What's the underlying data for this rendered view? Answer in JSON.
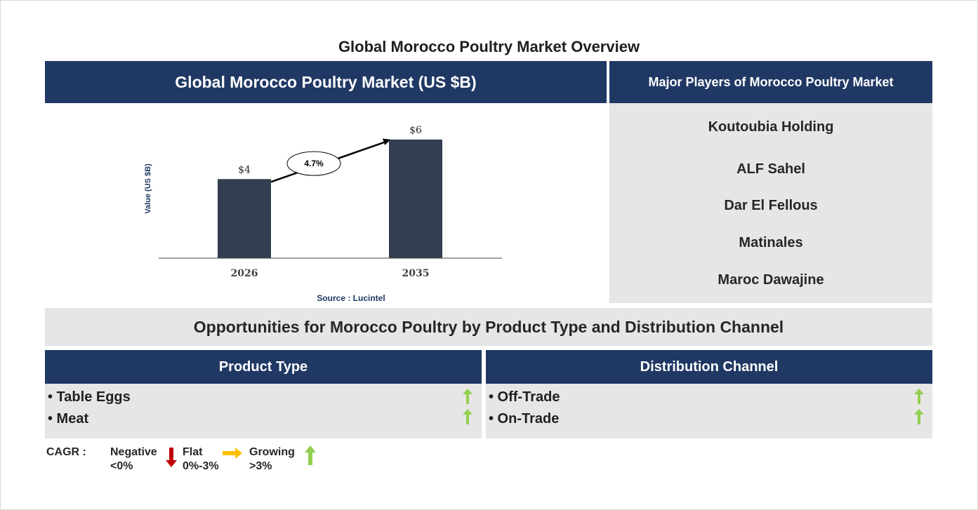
{
  "title": "Global Morocco Poultry Market Overview",
  "chart_panel": {
    "header": "Global Morocco Poultry Market (US $B)",
    "source": "Source : Lucintel"
  },
  "chart_data": {
    "type": "bar",
    "categories": [
      "2026",
      "2035"
    ],
    "values": [
      4,
      6
    ],
    "value_labels": [
      "$4",
      "$6"
    ],
    "ylabel": "Value (US $B)",
    "ylim": [
      0,
      6.6
    ],
    "cagr_label": "4.7%",
    "bar_color": "#333f50",
    "grid": false
  },
  "players": {
    "header": "Major Players of Morocco Poultry Market",
    "items": [
      "Koutoubia Holding",
      "ALF Sahel",
      "Dar El Fellous",
      "Matinales",
      "Maroc Dawajine"
    ]
  },
  "opportunities": {
    "header": "Opportunities for Morocco Poultry by Product Type and Distribution Channel",
    "segments": [
      {
        "title": "Product Type",
        "items": [
          {
            "label": "• Table Eggs",
            "trend": "growing"
          },
          {
            "label": "• Meat",
            "trend": "growing"
          }
        ]
      },
      {
        "title": "Distribution Channel",
        "items": [
          {
            "label": "• Off-Trade",
            "trend": "growing"
          },
          {
            "label": "• On-Trade",
            "trend": "growing"
          }
        ]
      }
    ]
  },
  "legend": {
    "label": "CAGR :",
    "negative": {
      "name": "Negative",
      "range": "<0%",
      "color": "#c00000",
      "icon": "down-arrow-icon"
    },
    "flat": {
      "name": "Flat",
      "range": "0%-3%",
      "color": "#ffc000",
      "icon": "right-arrow-icon"
    },
    "growing": {
      "name": "Growing",
      "range": ">3%",
      "color": "#92d050",
      "icon": "up-arrow-icon"
    }
  }
}
